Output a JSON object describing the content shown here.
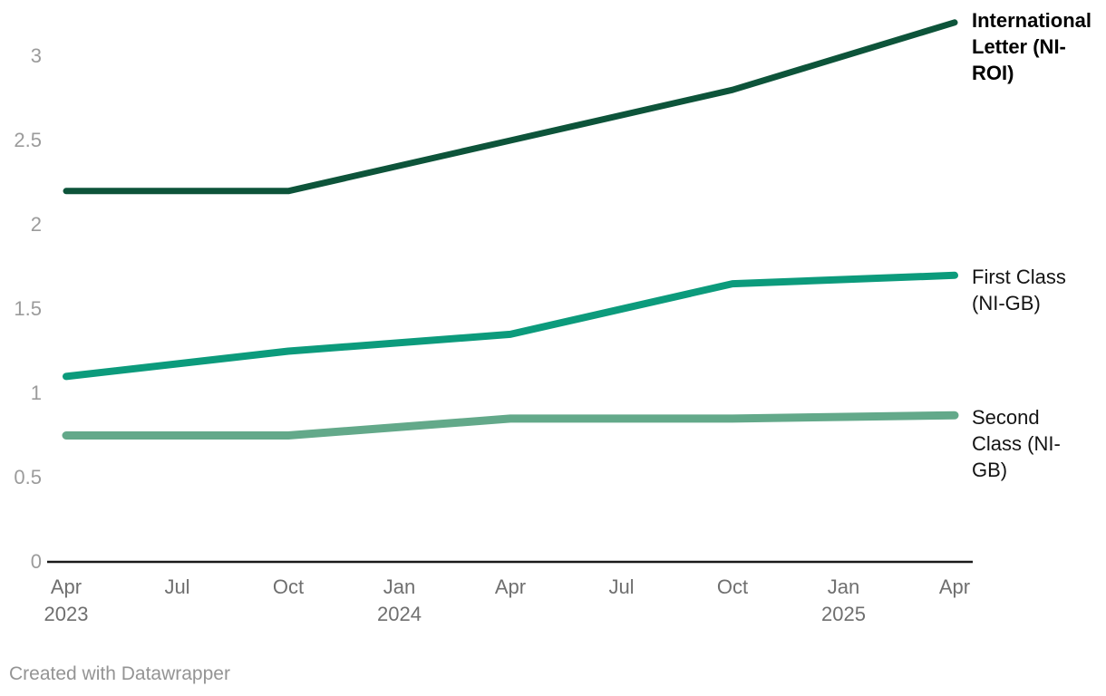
{
  "page": {
    "footer": "Created with Datawrapper"
  },
  "colors": {
    "background": "#ffffff",
    "axis_line": "#1a1a1a",
    "x_tick_label": "#6f6f6f",
    "y_tick_label": "#9b9b9b",
    "footer_text": "#949494"
  },
  "chart_data": {
    "type": "line",
    "title": "",
    "x": [
      "Apr 2023",
      "Oct 2023",
      "Apr 2024",
      "Oct 2024",
      "Apr 2025"
    ],
    "series": [
      {
        "id": "international-letter-ni-roi",
        "name": "International Letter (NI-ROI)",
        "label_lines": [
          "International",
          "Letter (NI-",
          "ROI)"
        ],
        "label_bold": true,
        "color": "#0d543a",
        "values": [
          2.2,
          2.2,
          2.5,
          2.8,
          3.2
        ]
      },
      {
        "id": "first-class-ni-gb",
        "name": "First Class (NI-GB)",
        "label_lines": [
          "First Class",
          "(NI-GB)"
        ],
        "label_bold": false,
        "color": "#0c9b7c",
        "values": [
          1.1,
          1.25,
          1.35,
          1.65,
          1.7
        ]
      },
      {
        "id": "second-class-ni-gb",
        "name": "Second Class (NI-GB)",
        "label_lines": [
          "Second",
          "Class (NI-",
          "GB)"
        ],
        "label_bold": false,
        "color": "#63a98a",
        "values": [
          0.75,
          0.75,
          0.85,
          0.85,
          0.87
        ]
      }
    ],
    "x_ticks": [
      {
        "month": "Apr",
        "year": "2023"
      },
      {
        "month": "Jul"
      },
      {
        "month": "Oct"
      },
      {
        "month": "Jan",
        "year": "2024"
      },
      {
        "month": "Apr"
      },
      {
        "month": "Jul"
      },
      {
        "month": "Oct"
      },
      {
        "month": "Jan",
        "year": "2025"
      },
      {
        "month": "Apr"
      }
    ],
    "y_ticks": [
      "0",
      "0.5",
      "1",
      "1.5",
      "2",
      "2.5",
      "3"
    ],
    "ylim": [
      0,
      3.3
    ],
    "grid": false,
    "legend_position": "right-of-line-ends"
  }
}
